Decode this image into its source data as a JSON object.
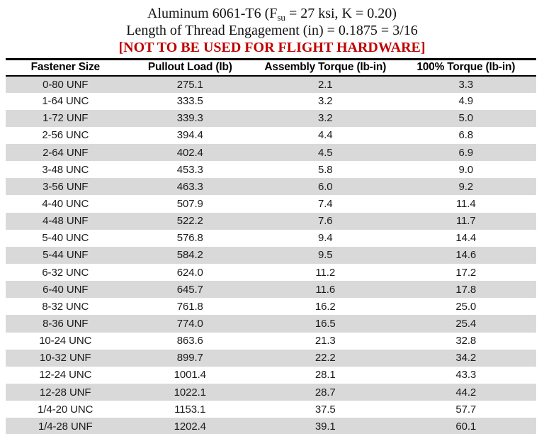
{
  "title": {
    "line1_prefix": "Aluminum 6061-T6 (F",
    "line1_sub": "su",
    "line1_suffix": " = 27 ksi, K = 0.20)",
    "line2": "Length of Thread Engagement (in) = 0.1875 = 3/16",
    "warning": "[NOT TO BE USED FOR FLIGHT HARDWARE]"
  },
  "colors": {
    "warning_red": "#C00000",
    "row_stripe_gray": "#D9D9D9",
    "border_black": "#000000"
  },
  "table": {
    "headers": [
      "Fastener Size",
      "Pullout Load (lb)",
      "Assembly Torque (lb-in)",
      "100% Torque (lb-in)"
    ],
    "rows": [
      [
        "0-80 UNF",
        "275.1",
        "2.1",
        "3.3"
      ],
      [
        "1-64 UNC",
        "333.5",
        "3.2",
        "4.9"
      ],
      [
        "1-72 UNF",
        "339.3",
        "3.2",
        "5.0"
      ],
      [
        "2-56 UNC",
        "394.4",
        "4.4",
        "6.8"
      ],
      [
        "2-64 UNF",
        "402.4",
        "4.5",
        "6.9"
      ],
      [
        "3-48 UNC",
        "453.3",
        "5.8",
        "9.0"
      ],
      [
        "3-56 UNF",
        "463.3",
        "6.0",
        "9.2"
      ],
      [
        "4-40 UNC",
        "507.9",
        "7.4",
        "11.4"
      ],
      [
        "4-48 UNF",
        "522.2",
        "7.6",
        "11.7"
      ],
      [
        "5-40 UNC",
        "576.8",
        "9.4",
        "14.4"
      ],
      [
        "5-44 UNF",
        "584.2",
        "9.5",
        "14.6"
      ],
      [
        "6-32 UNC",
        "624.0",
        "11.2",
        "17.2"
      ],
      [
        "6-40 UNF",
        "645.7",
        "11.6",
        "17.8"
      ],
      [
        "8-32 UNC",
        "761.8",
        "16.2",
        "25.0"
      ],
      [
        "8-36 UNF",
        "774.0",
        "16.5",
        "25.4"
      ],
      [
        "10-24 UNC",
        "863.6",
        "21.3",
        "32.8"
      ],
      [
        "10-32 UNF",
        "899.7",
        "22.2",
        "34.2"
      ],
      [
        "12-24 UNC",
        "1001.4",
        "28.1",
        "43.3"
      ],
      [
        "12-28 UNF",
        "1022.1",
        "28.7",
        "44.2"
      ],
      [
        "1/4-20 UNC",
        "1153.1",
        "37.5",
        "57.7"
      ],
      [
        "1/4-28 UNF",
        "1202.4",
        "39.1",
        "60.1"
      ]
    ]
  }
}
